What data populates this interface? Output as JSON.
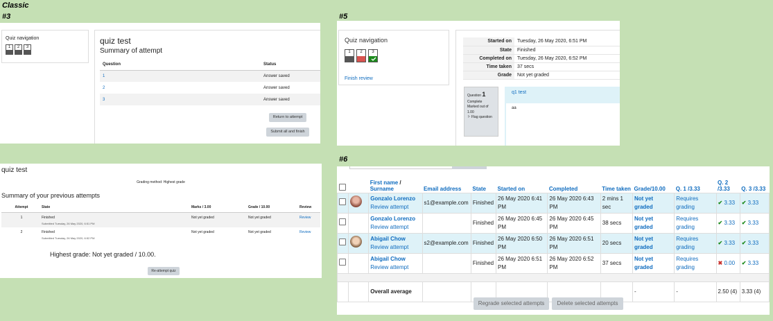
{
  "labels": {
    "classic": "Classic",
    "n3": "#3",
    "n5": "#5",
    "n6": "#6"
  },
  "p3": {
    "nav_title": "Quiz navigation",
    "nav_buttons": [
      "1",
      "2",
      "3"
    ],
    "title": "quiz test",
    "subtitle": "Summary of attempt",
    "col_question": "Question",
    "col_status": "Status",
    "rows": [
      {
        "q": "1",
        "status": "Answer saved"
      },
      {
        "q": "2",
        "status": "Answer saved"
      },
      {
        "q": "3",
        "status": "Answer saved"
      }
    ],
    "return_btn": "Return to attempt",
    "submit_btn": "Submit all and finish"
  },
  "prev": {
    "title": "quiz test",
    "grading_method": "Grading method: Highest grade",
    "subtitle": "Summary of your previous attempts",
    "cols": [
      "Attempt",
      "State",
      "Marks / 3.00",
      "Grade / 10.00",
      "Review"
    ],
    "rows": [
      {
        "attempt": "1",
        "state": "Finished",
        "submitted": "Submitted Tuesday, 26 May 2020, 6:51 PM",
        "marks": "Not yet graded",
        "grade": "Not yet graded",
        "review": "Review"
      },
      {
        "attempt": "2",
        "state": "Finished",
        "submitted": "Submitted Tuesday, 26 May 2020, 6:52 PM",
        "marks": "Not yet graded",
        "grade": "Not yet graded",
        "review": "Review"
      }
    ],
    "highest": "Highest grade: Not yet graded / 10.00.",
    "reattempt_btn": "Re-attempt quiz"
  },
  "p5": {
    "nav_title": "Quiz navigation",
    "nav_buttons": [
      "1",
      "2",
      "3"
    ],
    "finish_review": "Finish review",
    "summary": [
      {
        "k": "Started on",
        "v": "Tuesday, 26 May 2020, 6:51 PM"
      },
      {
        "k": "State",
        "v": "Finished"
      },
      {
        "k": "Completed on",
        "v": "Tuesday, 26 May 2020, 6:52 PM"
      },
      {
        "k": "Time taken",
        "v": "37 secs"
      },
      {
        "k": "Grade",
        "v": "Not yet graded"
      }
    ],
    "question_label": "Question",
    "question_num": "1",
    "complete": "Complete",
    "marked_out": "Marked out of 1.00",
    "flag": "Flag question",
    "question_text": "q1 test",
    "answer": "aa"
  },
  "p6": {
    "headers": {
      "first": "First name",
      "slash": " / ",
      "surname": "Surname",
      "email": "Email address",
      "state": "State",
      "started": "Started on",
      "completed": "Completed",
      "time": "Time taken",
      "grade": "Grade/10.00",
      "q1": "Q. 1 /3.33",
      "q2": "Q. 2 /3.33",
      "q3": "Q. 3 /3.33"
    },
    "rows": [
      {
        "name": "Gonzalo Lorenzo",
        "review": "Review attempt",
        "email": "s1@example.com",
        "state": "Finished",
        "started": "26 May 2020 6:41 PM",
        "completed": "26 May 2020 6:43 PM",
        "time": "2 mins 1 sec",
        "grade": "Not yet graded",
        "q1": "Requires grading",
        "q2": "3.33",
        "q3": "3.33"
      },
      {
        "name": "Gonzalo Lorenzo",
        "review": "Review attempt",
        "email": "",
        "state": "Finished",
        "started": "26 May 2020 6:45 PM",
        "completed": "26 May 2020 6:45 PM",
        "time": "38 secs",
        "grade": "Not yet graded",
        "q1": "Requires grading",
        "q2": "3.33",
        "q3": "3.33"
      },
      {
        "name": "Abigail Chow",
        "review": "Review attempt",
        "email": "s2@example.com",
        "state": "Finished",
        "started": "26 May 2020 6:50 PM",
        "completed": "26 May 2020 6:51 PM",
        "time": "20 secs",
        "grade": "Not yet graded",
        "q1": "Requires grading",
        "q2": "3.33",
        "q3": "3.33"
      },
      {
        "name": "Abigail Chow",
        "review": "Review attempt",
        "email": "",
        "state": "Finished",
        "started": "26 May 2020 6:51 PM",
        "completed": "26 May 2020 6:52 PM",
        "time": "37 secs",
        "grade": "Not yet graded",
        "q1": "Requires grading",
        "q2": "0.00",
        "q3": "3.33"
      }
    ],
    "overall": {
      "label": "Overall average",
      "grade": "-",
      "q1": "-",
      "q2": "2.50 (4)",
      "q3": "3.33 (4)"
    },
    "regrade_btn": "Regrade selected attempts",
    "delete_btn": "Delete selected attempts"
  },
  "colors": {
    "link": "#0f6cbf",
    "background": "#c5e0b4",
    "highlight": "#def2f8",
    "correct": "#1c8a1c",
    "incorrect": "#c9302c"
  }
}
